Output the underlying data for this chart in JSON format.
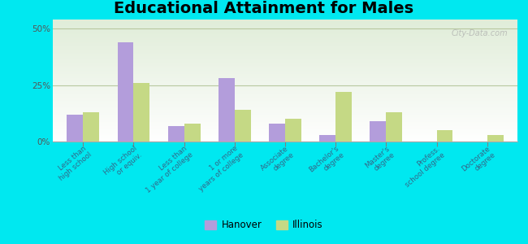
{
  "title": "Educational Attainment for Males",
  "categories": [
    "Less than\nhigh school",
    "High school\nor equiv.",
    "Less than\n1 year of college",
    "1 or more\nyears of college",
    "Associate\ndegree",
    "Bachelor's\ndegree",
    "Master's\ndegree",
    "Profess.\nschool degree",
    "Doctorate\ndegree"
  ],
  "hanover": [
    12.0,
    44.0,
    7.0,
    28.0,
    8.0,
    3.0,
    9.0,
    0.0,
    0.0
  ],
  "illinois": [
    13.0,
    26.0,
    8.0,
    14.0,
    10.0,
    22.0,
    13.0,
    5.0,
    3.0
  ],
  "hanover_color": "#b39ddb",
  "illinois_color": "#c5d985",
  "outer_background": "#00e8f0",
  "yticks": [
    0,
    25,
    50
  ],
  "ylim": [
    0,
    54
  ],
  "title_fontsize": 14,
  "bar_width": 0.32,
  "label_color": "#336688",
  "tick_label_color": "#555555",
  "watermark": "City-Data.com"
}
